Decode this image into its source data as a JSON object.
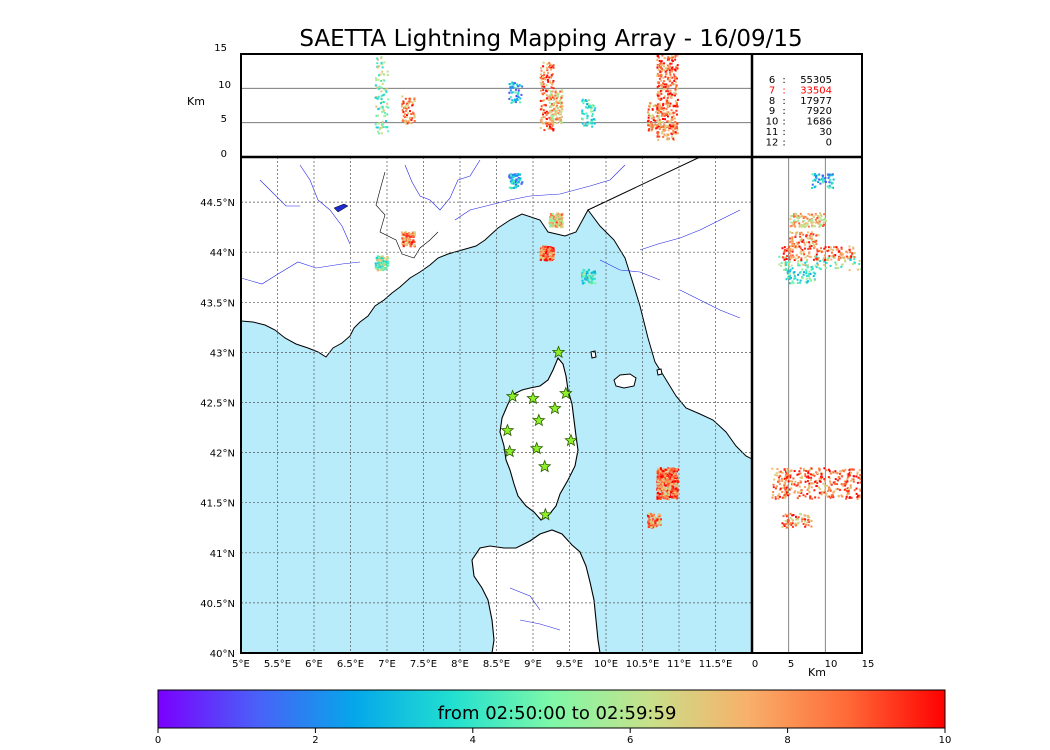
{
  "title": "SAETTA Lightning Mapping Array - 16/09/15",
  "time_range_label": "from 02:50:00 to 02:59:59",
  "axis_unit_km": "Km",
  "colors": {
    "sea": "#b9ecfb",
    "land": "#ffffff",
    "coast": "#000000",
    "rivers": "#2323e6",
    "grid": "#666666",
    "frame": "#000000",
    "station_fill": "#8ef02a",
    "station_stroke": "#2a5a00",
    "highlight_count": "#ff0000"
  },
  "colorbar": {
    "ticks": [
      "0",
      "2",
      "4",
      "6",
      "8",
      "10"
    ],
    "stops": [
      "#7a00ff",
      "#4a60f8",
      "#05a7ea",
      "#22e0d0",
      "#7ef8a8",
      "#c8e08a",
      "#f8b06a",
      "#ff6a38",
      "#ff0000"
    ]
  },
  "map": {
    "lon_ticks": [
      "5°E",
      "5.5°E",
      "6°E",
      "6.5°E",
      "7°E",
      "7.5°E",
      "8°E",
      "8.5°E",
      "9°E",
      "9.5°E",
      "10°E",
      "10.5°E",
      "11°E",
      "11.5°E"
    ],
    "lat_ticks": [
      "44.5°N",
      "44°N",
      "43.5°N",
      "43°N",
      "42.5°N",
      "42°N",
      "41.5°N",
      "41°N",
      "40.5°N",
      "40°N"
    ],
    "lon_range": [
      5.0,
      12.0
    ],
    "lat_range": [
      40.0,
      44.95
    ],
    "stations": [
      {
        "lon": 9.35,
        "lat": 43.0
      },
      {
        "lon": 8.72,
        "lat": 42.56
      },
      {
        "lon": 9.0,
        "lat": 42.54
      },
      {
        "lon": 9.45,
        "lat": 42.59
      },
      {
        "lon": 9.3,
        "lat": 42.44
      },
      {
        "lon": 9.08,
        "lat": 42.32
      },
      {
        "lon": 8.65,
        "lat": 42.22
      },
      {
        "lon": 9.52,
        "lat": 42.12
      },
      {
        "lon": 9.05,
        "lat": 42.04
      },
      {
        "lon": 8.68,
        "lat": 42.01
      },
      {
        "lon": 9.16,
        "lat": 41.86
      },
      {
        "lon": 9.17,
        "lat": 41.38
      }
    ]
  },
  "altitude_panel_top": {
    "y_ticks": [
      "15",
      "10",
      "5",
      "0"
    ],
    "y_range": [
      0,
      15
    ],
    "gridlines_km": [
      5,
      10
    ]
  },
  "altitude_panel_right": {
    "x_ticks": [
      "0",
      "5",
      "10",
      "15"
    ],
    "x_range": [
      0,
      15
    ],
    "gridlines_km": [
      5,
      10
    ]
  },
  "altitude_counts": [
    {
      "level": "6",
      "count": "55305",
      "highlight": false
    },
    {
      "level": "7",
      "count": "33504",
      "highlight": true
    },
    {
      "level": "8",
      "count": "17977",
      "highlight": false
    },
    {
      "level": "9",
      "count": "7920",
      "highlight": false
    },
    {
      "level": "10",
      "count": "1686",
      "highlight": false
    },
    {
      "level": "11",
      "count": "30",
      "highlight": false
    },
    {
      "level": "12",
      "count": "0",
      "highlight": false
    }
  ],
  "lightning_clusters": [
    {
      "lon": 6.92,
      "lat": 43.9,
      "alt_min": 3.5,
      "alt_max": 15,
      "t": 5.2,
      "n": 90
    },
    {
      "lon": 7.28,
      "lat": 44.14,
      "alt_min": 5,
      "alt_max": 9,
      "t": 8.3,
      "n": 70
    },
    {
      "lon": 9.18,
      "lat": 44.0,
      "alt_min": 4,
      "alt_max": 14,
      "t": 8.6,
      "n": 140
    },
    {
      "lon": 9.3,
      "lat": 44.33,
      "alt_min": 5,
      "alt_max": 10,
      "t": 7.2,
      "n": 110
    },
    {
      "lon": 9.75,
      "lat": 43.77,
      "alt_min": 4.5,
      "alt_max": 8.5,
      "t": 4.2,
      "n": 60
    },
    {
      "lon": 8.75,
      "lat": 44.72,
      "alt_min": 8,
      "alt_max": 11,
      "t": 2.8,
      "n": 50
    },
    {
      "lon": 10.83,
      "lat": 41.7,
      "alt_min": 2.5,
      "alt_max": 15,
      "t": 8.5,
      "n": 340
    },
    {
      "lon": 10.65,
      "lat": 41.33,
      "alt_min": 4,
      "alt_max": 8,
      "t": 8.0,
      "n": 70
    }
  ]
}
